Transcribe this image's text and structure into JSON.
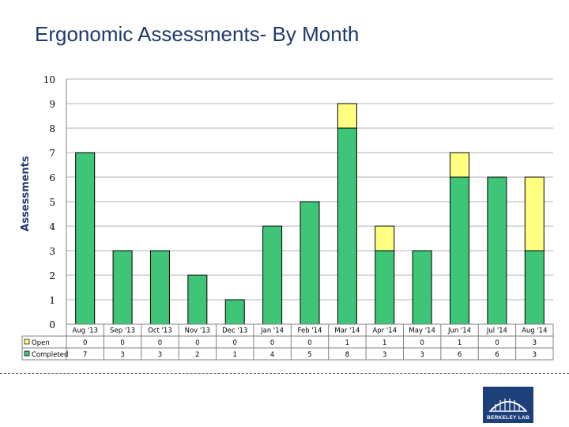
{
  "page": {
    "title": "Ergonomic Assessments- By Month"
  },
  "logo": {
    "text": "BERKELEY LAB",
    "color": "#1d3f7a"
  },
  "chart_data": {
    "type": "bar",
    "stacked": true,
    "title": "Ergonomic Assessments- By Month",
    "xlabel": "",
    "ylabel": "Assessments",
    "ylim": [
      0,
      10
    ],
    "yticks": [
      0,
      1,
      2,
      3,
      4,
      5,
      6,
      7,
      8,
      9,
      10
    ],
    "grid": true,
    "categories": [
      "Aug '13",
      "Sep '13",
      "Oct '13",
      "Nov '13",
      "Dec '13",
      "Jan '14",
      "Feb '14",
      "Mar '14",
      "Apr '14",
      "May '14",
      "Jun '14",
      "Jul '14",
      "Aug '14"
    ],
    "series": [
      {
        "name": "Completed",
        "color": "#3ec577",
        "values": [
          7,
          3,
          3,
          2,
          1,
          4,
          5,
          8,
          3,
          3,
          6,
          6,
          3
        ]
      },
      {
        "name": "Open",
        "color": "#ffff80",
        "values": [
          0,
          0,
          0,
          0,
          0,
          0,
          0,
          1,
          1,
          0,
          1,
          0,
          3
        ]
      }
    ],
    "data_table": true
  }
}
